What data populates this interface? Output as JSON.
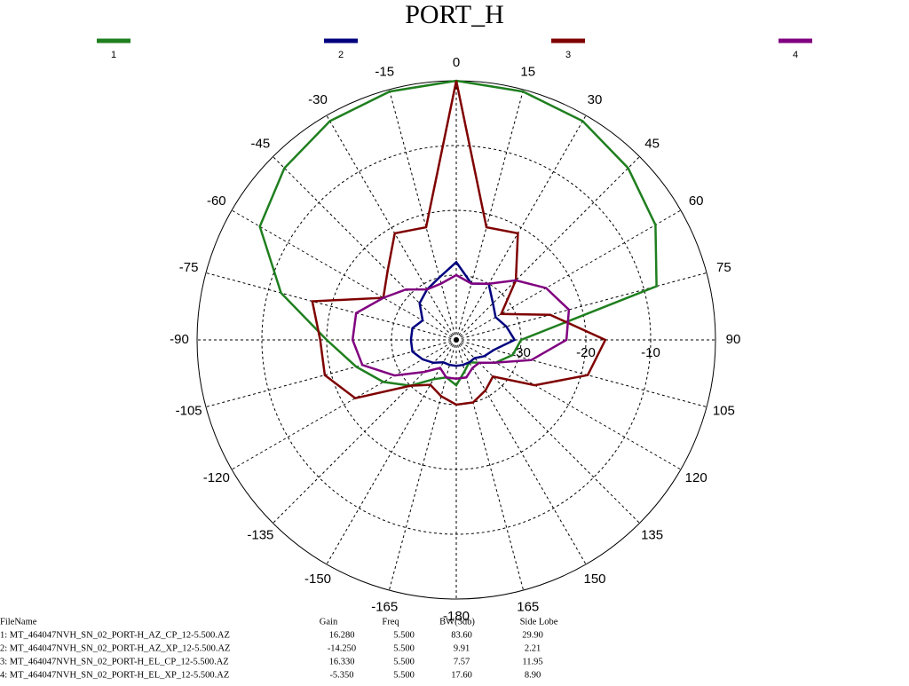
{
  "chart_data": {
    "type": "polar",
    "title": "PORT_H",
    "theta": [
      0,
      15,
      30,
      45,
      60,
      75,
      90,
      105,
      120,
      135,
      150,
      165,
      180,
      -165,
      -150,
      -135,
      -120,
      -105,
      -90,
      -75,
      -60,
      -45,
      -30,
      -15
    ],
    "thetaticks": [
      0,
      15,
      30,
      45,
      60,
      75,
      90,
      105,
      120,
      135,
      150,
      165,
      -180,
      -165,
      -150,
      -135,
      -120,
      -105,
      -90,
      -75,
      -60,
      -45,
      -30,
      -15
    ],
    "rlim": [
      -40,
      0
    ],
    "rticks": [
      -30,
      -20,
      -10
    ],
    "grid": true,
    "series": [
      {
        "name": "1",
        "color": "#1f7f1f",
        "values": [
          0,
          -0.3,
          -1,
          -2.5,
          -4.5,
          -8,
          -30,
          -31,
          -33,
          -35,
          -36,
          -35,
          -33,
          -34,
          -33,
          -30,
          -27,
          -24,
          -20,
          -12,
          -5,
          -2.5,
          -1,
          -0.3
        ]
      },
      {
        "name": "2",
        "color": "#00007f",
        "values": [
          -28,
          -31,
          -30,
          -32,
          -33,
          -32,
          -31,
          -34,
          -35,
          -36,
          -36,
          -36,
          -36,
          -36,
          -36,
          -35,
          -34,
          -33,
          -33,
          -33,
          -34,
          -32,
          -31,
          -30
        ]
      },
      {
        "name": "3",
        "color": "#7f0000",
        "values": [
          0,
          -22,
          -21,
          -27,
          -32,
          -25,
          -17,
          -19,
          -26,
          -32,
          -31,
          -30,
          -30,
          -31,
          -32,
          -30,
          -22,
          -19,
          -19,
          -17,
          -27,
          -25,
          -21,
          -22
        ]
      },
      {
        "name": "4",
        "color": "#800080",
        "values": [
          -30,
          -31,
          -30,
          -27,
          -24,
          -22,
          -23,
          -28,
          -33,
          -35,
          -35,
          -34,
          -34,
          -34,
          -35,
          -33,
          -29,
          -25,
          -24,
          -24,
          -27,
          -29,
          -31,
          -31
        ]
      }
    ]
  },
  "table": {
    "columns": [
      "FileName",
      "Gain",
      "Freq",
      "BW(3db)",
      "Side Lobe"
    ],
    "rows": [
      [
        "1: MT_464047NVH_SN_02_PORT-H_AZ_CP_12-5.500.AZ",
        "16.280",
        "5.500",
        "83.60",
        "29.90"
      ],
      [
        "2: MT_464047NVH_SN_02_PORT-H_AZ_XP_12-5.500.AZ",
        "-14.250",
        "5.500",
        "9.91",
        "2.21"
      ],
      [
        "3: MT_464047NVH_SN_02_PORT-H_EL_CP_12-5.500.AZ",
        "16.330",
        "5.500",
        "7.57",
        "11.95"
      ],
      [
        "4: MT_464047NVH_SN_02_PORT-H_EL_XP_12-5.500.AZ",
        "-5.350",
        "5.500",
        "17.60",
        "8.90"
      ]
    ]
  }
}
